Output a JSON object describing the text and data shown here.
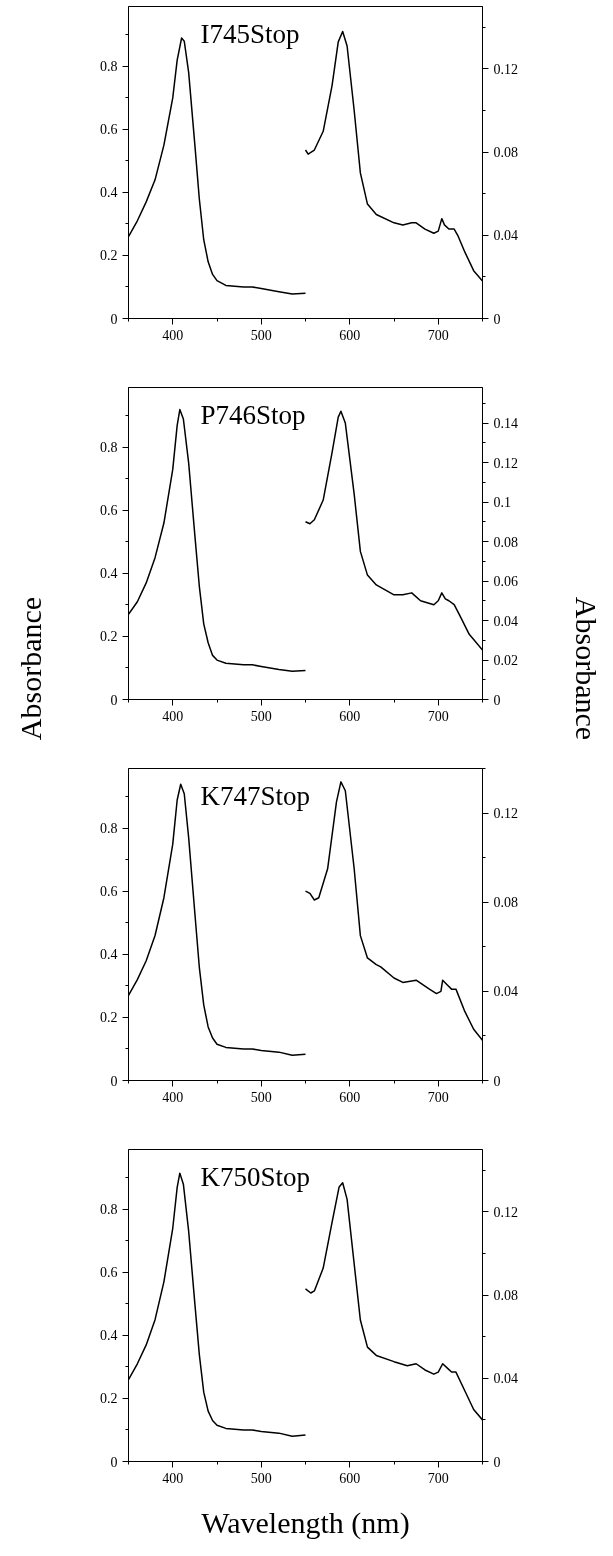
{
  "chart_data": [
    {
      "type": "line",
      "title": "I745Stop",
      "xlim": [
        350,
        750
      ],
      "xticks": [
        400,
        500,
        600,
        700
      ],
      "ylim": [
        0,
        0.99
      ],
      "yticks": [
        0,
        0.2,
        0.4,
        0.6,
        0.8
      ],
      "y2lim": [
        0,
        0.15
      ],
      "y2ticks": [
        0,
        0.04,
        0.08,
        0.12
      ],
      "grid": false,
      "series": [
        {
          "color": "#000000",
          "x": [
            350,
            360,
            370,
            380,
            390,
            400,
            405,
            410,
            413,
            418,
            425,
            430,
            435,
            440,
            445,
            450,
            460,
            480,
            490,
            500,
            520,
            535,
            550
          ],
          "values": [
            0.26,
            0.31,
            0.37,
            0.44,
            0.55,
            0.7,
            0.82,
            0.89,
            0.88,
            0.78,
            0.55,
            0.38,
            0.25,
            0.18,
            0.14,
            0.12,
            0.105,
            0.1,
            0.1,
            0.095,
            0.085,
            0.078,
            0.08
          ]
        },
        {
          "color": "#000000",
          "axis": "y2",
          "x": [
            550,
            553,
            560,
            570,
            580,
            587,
            592,
            597,
            605,
            612,
            620,
            630,
            650,
            660,
            670,
            675,
            685,
            695,
            700,
            704,
            707,
            712,
            718,
            722,
            730,
            740,
            750
          ],
          "values": [
            0.081,
            0.079,
            0.081,
            0.09,
            0.112,
            0.133,
            0.138,
            0.131,
            0.1,
            0.07,
            0.055,
            0.05,
            0.046,
            0.045,
            0.046,
            0.046,
            0.043,
            0.041,
            0.042,
            0.048,
            0.045,
            0.043,
            0.043,
            0.04,
            0.032,
            0.023,
            0.018
          ]
        }
      ]
    },
    {
      "type": "line",
      "title": "P746Stop",
      "ylabel": "Absorbance",
      "y2label": "Absorbance",
      "xlim": [
        350,
        750
      ],
      "xticks": [
        400,
        500,
        600,
        700
      ],
      "ylim": [
        0,
        0.99
      ],
      "yticks": [
        0,
        0.2,
        0.4,
        0.6,
        0.8
      ],
      "y2lim": [
        0,
        0.158
      ],
      "y2ticks": [
        0,
        0.02,
        0.04,
        0.06,
        0.08,
        0.1,
        0.12,
        0.14
      ],
      "grid": false,
      "series": [
        {
          "color": "#000000",
          "x": [
            350,
            360,
            370,
            380,
            390,
            400,
            405,
            408,
            412,
            418,
            425,
            430,
            435,
            440,
            445,
            450,
            460,
            480,
            490,
            500,
            520,
            535,
            550
          ],
          "values": [
            0.27,
            0.31,
            0.37,
            0.45,
            0.56,
            0.73,
            0.87,
            0.92,
            0.89,
            0.75,
            0.52,
            0.36,
            0.24,
            0.18,
            0.14,
            0.125,
            0.115,
            0.11,
            0.11,
            0.105,
            0.095,
            0.09,
            0.092
          ]
        },
        {
          "color": "#000000",
          "axis": "y2",
          "x": [
            550,
            555,
            560,
            570,
            580,
            587,
            590,
            595,
            605,
            612,
            620,
            630,
            650,
            660,
            670,
            680,
            695,
            700,
            704,
            708,
            712,
            718,
            725,
            735,
            750
          ],
          "values": [
            0.09,
            0.089,
            0.091,
            0.101,
            0.125,
            0.143,
            0.146,
            0.14,
            0.104,
            0.075,
            0.063,
            0.058,
            0.053,
            0.053,
            0.054,
            0.05,
            0.048,
            0.05,
            0.054,
            0.051,
            0.05,
            0.048,
            0.042,
            0.033,
            0.025
          ]
        }
      ]
    },
    {
      "type": "line",
      "title": "K747Stop",
      "xlim": [
        350,
        750
      ],
      "xticks": [
        400,
        500,
        600,
        700
      ],
      "ylim": [
        0,
        0.99
      ],
      "yticks": [
        0,
        0.2,
        0.4,
        0.6,
        0.8
      ],
      "y2lim": [
        0,
        0.14
      ],
      "y2ticks": [
        0,
        0.04,
        0.08,
        0.12
      ],
      "grid": false,
      "series": [
        {
          "color": "#000000",
          "x": [
            350,
            360,
            370,
            380,
            390,
            400,
            405,
            409,
            413,
            418,
            425,
            430,
            435,
            440,
            445,
            450,
            460,
            480,
            490,
            500,
            520,
            535,
            550
          ],
          "values": [
            0.27,
            0.32,
            0.38,
            0.46,
            0.58,
            0.75,
            0.89,
            0.94,
            0.91,
            0.77,
            0.53,
            0.36,
            0.24,
            0.17,
            0.135,
            0.115,
            0.105,
            0.1,
            0.1,
            0.095,
            0.09,
            0.08,
            0.083
          ]
        },
        {
          "color": "#000000",
          "axis": "y2",
          "x": [
            550,
            555,
            560,
            565,
            575,
            585,
            590,
            595,
            605,
            612,
            620,
            630,
            635,
            650,
            660,
            675,
            690,
            698,
            703,
            705,
            710,
            715,
            720,
            730,
            740,
            750
          ],
          "values": [
            0.085,
            0.084,
            0.081,
            0.082,
            0.095,
            0.125,
            0.134,
            0.13,
            0.095,
            0.065,
            0.055,
            0.052,
            0.051,
            0.046,
            0.044,
            0.045,
            0.041,
            0.039,
            0.04,
            0.045,
            0.043,
            0.041,
            0.041,
            0.031,
            0.023,
            0.018
          ]
        }
      ]
    },
    {
      "type": "line",
      "title": "K750Stop",
      "xlabel": "Wavelength (nm)",
      "xlim": [
        350,
        750
      ],
      "xticks": [
        400,
        500,
        600,
        700
      ],
      "ylim": [
        0,
        0.99
      ],
      "yticks": [
        0,
        0.2,
        0.4,
        0.6,
        0.8
      ],
      "y2lim": [
        0,
        0.15
      ],
      "y2ticks": [
        0,
        0.04,
        0.08,
        0.12
      ],
      "grid": false,
      "series": [
        {
          "color": "#000000",
          "x": [
            350,
            360,
            370,
            380,
            390,
            400,
            405,
            408,
            412,
            418,
            425,
            430,
            435,
            440,
            445,
            450,
            460,
            480,
            490,
            500,
            520,
            535,
            550
          ],
          "values": [
            0.26,
            0.31,
            0.37,
            0.45,
            0.57,
            0.74,
            0.87,
            0.915,
            0.88,
            0.73,
            0.5,
            0.34,
            0.22,
            0.16,
            0.13,
            0.115,
            0.105,
            0.1,
            0.1,
            0.095,
            0.09,
            0.08,
            0.084
          ]
        },
        {
          "color": "#000000",
          "axis": "y2",
          "x": [
            550,
            556,
            560,
            570,
            580,
            588,
            592,
            597,
            605,
            612,
            620,
            630,
            650,
            665,
            675,
            685,
            695,
            700,
            705,
            710,
            715,
            720,
            730,
            740,
            750
          ],
          "values": [
            0.083,
            0.081,
            0.082,
            0.093,
            0.115,
            0.132,
            0.134,
            0.126,
            0.095,
            0.068,
            0.055,
            0.051,
            0.048,
            0.046,
            0.047,
            0.044,
            0.042,
            0.043,
            0.047,
            0.045,
            0.043,
            0.043,
            0.034,
            0.025,
            0.02
          ]
        }
      ]
    }
  ]
}
